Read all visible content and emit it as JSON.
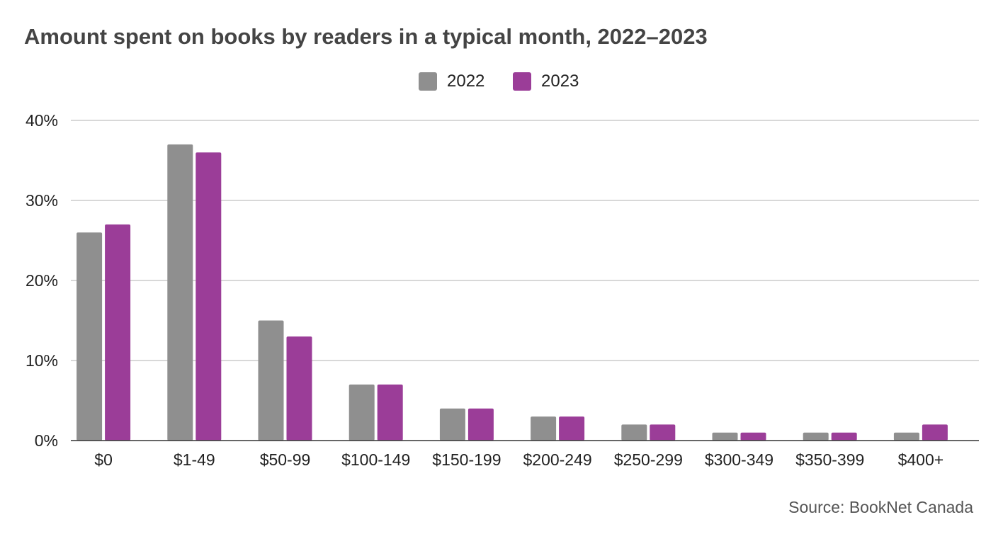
{
  "chart_data": {
    "type": "bar",
    "title": "Amount spent on books by readers in a typical month, 2022–2023",
    "categories": [
      "$0",
      "$1-49",
      "$50-99",
      "$100-149",
      "$150-199",
      "$200-249",
      "$250-299",
      "$300-349",
      "$350-399",
      "$400+"
    ],
    "series": [
      {
        "name": "2022",
        "color": "#8f8f8f",
        "values": [
          26,
          37,
          15,
          7,
          4,
          3,
          2,
          1,
          1,
          1
        ]
      },
      {
        "name": "2023",
        "color": "#9b3d98",
        "values": [
          27,
          36,
          13,
          7,
          4,
          3,
          2,
          1,
          1,
          2
        ]
      }
    ],
    "ylim": [
      0,
      40
    ],
    "yticks": [
      "0%",
      "10%",
      "20%",
      "30%",
      "40%"
    ],
    "ytick_values": [
      0,
      10,
      20,
      30,
      40
    ],
    "xlabel": "",
    "ylabel": "",
    "grid": true,
    "legend": "top-center",
    "source": "Source: BookNet Canada"
  }
}
